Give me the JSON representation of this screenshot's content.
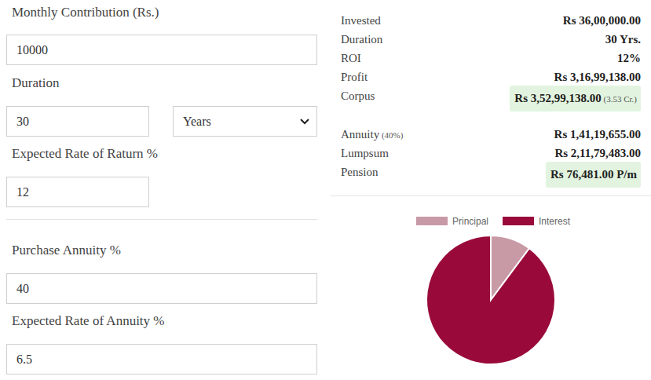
{
  "form": {
    "fields": [
      {
        "label": "Monthly Contribution (Rs.)",
        "value": "10000"
      },
      {
        "label": "Duration",
        "value": "30",
        "unit": "Years"
      },
      {
        "label": "Expected Rate of Raturn %",
        "value": "12"
      },
      {
        "label": "Purchase Annuity %",
        "value": "40"
      },
      {
        "label": "Expected Rate of Annuity %",
        "value": "6.5"
      }
    ]
  },
  "results": {
    "groups": [
      {
        "rows": [
          {
            "label": "Invested",
            "value": "Rs 36,00,000.00"
          },
          {
            "label": "Duration",
            "value": "30 Yrs."
          },
          {
            "label": "ROI",
            "value": "12%"
          },
          {
            "label": "Profit",
            "value": "Rs 3,16,99,138.00"
          },
          {
            "label": "Corpus",
            "value": "Rs 3,52,99,138.00",
            "note": "(3.53 Cr.)",
            "highlight": true
          }
        ]
      },
      {
        "rows": [
          {
            "label": "Annuity",
            "label_note": "(40%)",
            "value": "Rs 1,41,19,655.00"
          },
          {
            "label": "Lumpsum",
            "value": "Rs 2,11,79,483.00"
          },
          {
            "label": "Pension",
            "value": "Rs 76,481.00 P/m",
            "highlight": true
          }
        ]
      }
    ]
  },
  "chart_data": {
    "type": "pie",
    "categories": [
      "Principal",
      "Interest"
    ],
    "values": [
      3600000,
      31699138
    ],
    "colors": [
      "#c89aa6",
      "#990a3a"
    ],
    "legend": "top"
  }
}
